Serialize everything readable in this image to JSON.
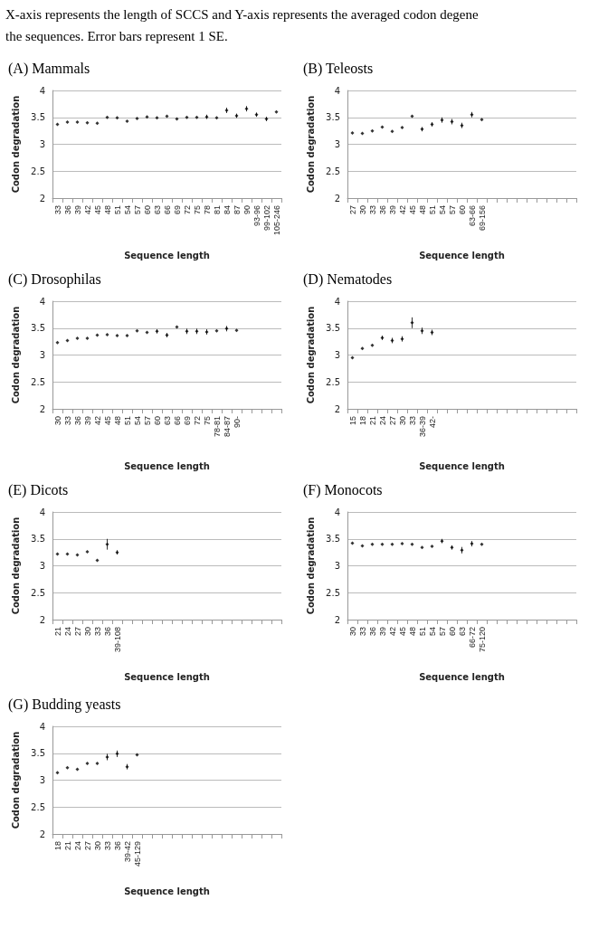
{
  "chart_data": [
    {
      "type": "scatter",
      "title": "(A) Mammals",
      "annotations": [
        "X-axis represents the length of SCCS and Y-axis represents the averaged codon degene",
        "the sequences. Error bars represent 1 SE."
      ],
      "xlabel": "Sequence length",
      "ylabel": "Codon degradation",
      "categories": [
        "33",
        "36",
        "39",
        "42",
        "45",
        "48",
        "51",
        "54",
        "57",
        "60",
        "63",
        "66",
        "69",
        "72",
        "75",
        "78",
        "81",
        "84",
        "87",
        "90",
        "93-96",
        "99-102",
        "105-246"
      ],
      "values": [
        3.37,
        3.41,
        3.41,
        3.4,
        3.39,
        3.5,
        3.49,
        3.43,
        3.48,
        3.51,
        3.49,
        3.52,
        3.47,
        3.5,
        3.5,
        3.51,
        3.49,
        3.63,
        3.53,
        3.66,
        3.55,
        3.47,
        3.6
      ],
      "errors": [
        null,
        null,
        null,
        null,
        null,
        null,
        null,
        null,
        null,
        null,
        null,
        null,
        null,
        null,
        null,
        0.04,
        null,
        0.05,
        0.04,
        0.05,
        0.04,
        0.04,
        null
      ],
      "color": "#000000",
      "marker": "diamond",
      "ylim": [
        2,
        4
      ],
      "yticks": [
        2,
        2.5,
        3,
        3.5,
        4
      ],
      "grid": "y"
    },
    {
      "type": "scatter",
      "title": "(B) Teleosts",
      "xlabel": "Sequence length",
      "ylabel": "Codon degradation",
      "categories": [
        "27",
        "30",
        "33",
        "36",
        "39",
        "42",
        "45",
        "48",
        "51",
        "54",
        "57",
        "60",
        "63-66",
        "69-156",
        null,
        null,
        null,
        null,
        null,
        null,
        null,
        null,
        null
      ],
      "values": [
        3.21,
        3.2,
        3.25,
        3.32,
        3.24,
        3.31,
        3.52,
        3.28,
        3.37,
        3.45,
        3.42,
        3.35,
        3.55,
        3.46,
        null,
        null,
        null,
        null,
        null,
        null,
        null,
        null,
        null
      ],
      "errors": [
        null,
        null,
        null,
        null,
        null,
        null,
        null,
        0.04,
        0.04,
        0.05,
        0.05,
        0.05,
        0.05,
        null,
        null,
        null,
        null,
        null,
        null,
        null,
        null,
        null,
        null
      ],
      "color": "#000000",
      "marker": "diamond",
      "ylim": [
        2,
        4
      ],
      "yticks": [
        2,
        2.5,
        3,
        3.5,
        4
      ],
      "grid": "y"
    },
    {
      "type": "scatter",
      "title": "(C) Drosophilas",
      "xlabel": "Sequence length",
      "ylabel": "Codon degradation",
      "categories": [
        "30",
        "33",
        "36",
        "39",
        "42",
        "45",
        "48",
        "51",
        "54",
        "57",
        "60",
        "63",
        "66",
        "69",
        "72",
        "75",
        "78-81",
        "84-87",
        "90-",
        null,
        null,
        null,
        null
      ],
      "values": [
        3.23,
        3.27,
        3.31,
        3.31,
        3.37,
        3.38,
        3.36,
        3.36,
        3.45,
        3.42,
        3.44,
        3.37,
        3.52,
        3.44,
        3.44,
        3.43,
        3.45,
        3.49,
        3.46,
        null,
        null,
        null,
        null
      ],
      "errors": [
        null,
        null,
        null,
        null,
        null,
        null,
        null,
        null,
        null,
        null,
        0.04,
        0.04,
        null,
        0.05,
        0.05,
        0.05,
        null,
        0.05,
        null,
        null,
        null,
        null,
        null
      ],
      "color": "#000000",
      "marker": "diamond",
      "ylim": [
        2,
        4
      ],
      "yticks": [
        2,
        2.5,
        3,
        3.5,
        4
      ],
      "grid": "y"
    },
    {
      "type": "scatter",
      "title": "(D) Nematodes",
      "xlabel": "Sequence length",
      "ylabel": "Codon degradation",
      "categories": [
        "15",
        "18",
        "21",
        "24",
        "27",
        "30",
        "33",
        "36-39",
        "42-",
        null,
        null,
        null,
        null,
        null,
        null,
        null,
        null,
        null,
        null,
        null,
        null,
        null,
        null
      ],
      "values": [
        2.95,
        3.12,
        3.18,
        3.32,
        3.27,
        3.3,
        3.6,
        3.45,
        3.42,
        null,
        null,
        null,
        null,
        null,
        null,
        null,
        null,
        null,
        null,
        null,
        null,
        null,
        null
      ],
      "errors": [
        null,
        null,
        null,
        0.04,
        0.05,
        0.05,
        0.1,
        0.06,
        0.05,
        null,
        null,
        null,
        null,
        null,
        null,
        null,
        null,
        null,
        null,
        null,
        null,
        null,
        null
      ],
      "color": "#000000",
      "marker": "diamond",
      "ylim": [
        2,
        4
      ],
      "yticks": [
        2,
        2.5,
        3,
        3.5,
        4
      ],
      "grid": "y"
    },
    {
      "type": "scatter",
      "title": "(E) Dicots",
      "xlabel": "Sequence length",
      "ylabel": "Codon degradation",
      "categories": [
        "21",
        "24",
        "27",
        "30",
        "33",
        "36",
        "39-108",
        null,
        null,
        null,
        null,
        null,
        null,
        null,
        null,
        null,
        null,
        null,
        null,
        null,
        null,
        null,
        null
      ],
      "values": [
        3.22,
        3.22,
        3.2,
        3.26,
        3.1,
        3.4,
        3.25,
        null,
        null,
        null,
        null,
        null,
        null,
        null,
        null,
        null,
        null,
        null,
        null,
        null,
        null,
        null,
        null
      ],
      "errors": [
        null,
        null,
        null,
        null,
        null,
        0.1,
        0.04,
        null,
        null,
        null,
        null,
        null,
        null,
        null,
        null,
        null,
        null,
        null,
        null,
        null,
        null,
        null,
        null
      ],
      "color": "#000000",
      "marker": "diamond",
      "ylim": [
        2,
        4
      ],
      "yticks": [
        2,
        2.5,
        3,
        3.5,
        4
      ],
      "grid": "y"
    },
    {
      "type": "scatter",
      "title": "(F) Monocots",
      "xlabel": "Sequence length",
      "ylabel": "Codon degradation",
      "categories": [
        "30",
        "33",
        "36",
        "39",
        "42",
        "45",
        "48",
        "51",
        "54",
        "57",
        "60",
        "63",
        "66-72",
        "75-120",
        null,
        null,
        null,
        null,
        null,
        null,
        null,
        null,
        null
      ],
      "values": [
        3.42,
        3.37,
        3.4,
        3.4,
        3.4,
        3.41,
        3.4,
        3.34,
        3.36,
        3.46,
        3.34,
        3.29,
        3.41,
        3.4,
        null,
        null,
        null,
        null,
        null,
        null,
        null,
        null,
        null
      ],
      "errors": [
        null,
        null,
        null,
        null,
        null,
        null,
        null,
        null,
        null,
        0.04,
        0.04,
        0.06,
        0.05,
        null,
        null,
        null,
        null,
        null,
        null,
        null,
        null,
        null,
        null
      ],
      "color": "#000000",
      "marker": "diamond",
      "ylim": [
        2,
        4
      ],
      "yticks": [
        2,
        2.5,
        3,
        3.5,
        4
      ],
      "grid": "y"
    },
    {
      "type": "scatter",
      "title": "(G) Budding yeasts",
      "xlabel": "Sequence length",
      "ylabel": "Codon degradation",
      "categories": [
        "18",
        "21",
        "24",
        "27",
        "30",
        "33",
        "36",
        "39-42",
        "45-129",
        null,
        null,
        null,
        null,
        null,
        null,
        null,
        null,
        null,
        null,
        null,
        null,
        null,
        null
      ],
      "values": [
        3.14,
        3.23,
        3.2,
        3.31,
        3.31,
        3.43,
        3.49,
        3.25,
        3.47,
        null,
        null,
        null,
        null,
        null,
        null,
        null,
        null,
        null,
        null,
        null,
        null,
        null,
        null
      ],
      "errors": [
        null,
        null,
        null,
        null,
        null,
        0.06,
        0.06,
        0.05,
        null,
        null,
        null,
        null,
        null,
        null,
        null,
        null,
        null,
        null,
        null,
        null,
        null,
        null,
        null
      ],
      "color": "#000000",
      "marker": "diamond",
      "ylim": [
        2,
        4
      ],
      "yticks": [
        2,
        2.5,
        3,
        3.5,
        4
      ],
      "grid": "y"
    }
  ]
}
